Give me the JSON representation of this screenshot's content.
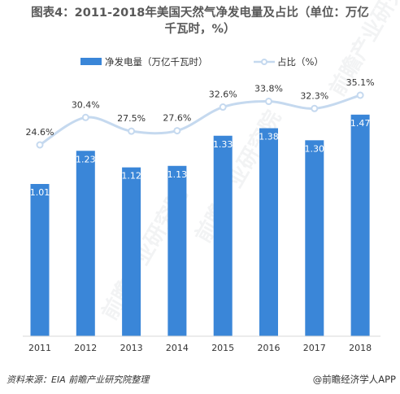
{
  "title_line1": "图表4：2011-2018年美国天然气净发电量及占比（单位：万亿",
  "title_line2": "千瓦时，%）",
  "legend": {
    "bar_label": "净发电量（万亿千瓦时）",
    "line_label": "占比（%）"
  },
  "chart_data": {
    "type": "bar",
    "categories": [
      "2011",
      "2012",
      "2013",
      "2014",
      "2015",
      "2016",
      "2017",
      "2018"
    ],
    "series": [
      {
        "name": "净发电量（万亿千瓦时）",
        "type": "bar",
        "values": [
          1.01,
          1.23,
          1.12,
          1.13,
          1.33,
          1.38,
          1.3,
          1.47
        ],
        "labels": [
          "1.01",
          "1.23",
          "1.12",
          "1.13",
          "1.33",
          "1.38",
          "1.30",
          "1.47"
        ]
      },
      {
        "name": "占比（%）",
        "type": "line",
        "values": [
          24.6,
          30.4,
          27.5,
          27.6,
          32.6,
          33.8,
          32.3,
          35.1
        ],
        "labels": [
          "24.6%",
          "30.4%",
          "27.5%",
          "27.6%",
          "32.6%",
          "33.8%",
          "32.3%",
          "35.1%"
        ]
      }
    ],
    "colors": {
      "bar": "#3a86d8",
      "line": "#c5d9ef",
      "marker_fill": "#ffffff",
      "axis": "#d9d9d9"
    }
  },
  "footer": {
    "source": "资料来源：EIA 前瞻产业研究院整理",
    "brand": "@前瞻经济学人APP"
  },
  "watermarks": [
    "前瞻产业研究院",
    "前瞻产业研究院",
    "前瞻产业研究院"
  ]
}
